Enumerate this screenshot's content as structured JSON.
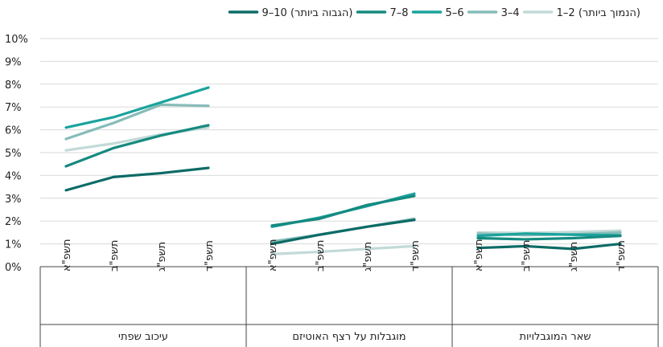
{
  "chart_data": {
    "type": "line",
    "ylim": [
      0,
      10
    ],
    "yticks": [
      "0%",
      "1%",
      "2%",
      "3%",
      "4%",
      "5%",
      "6%",
      "7%",
      "8%",
      "9%",
      "10%"
    ],
    "grid": true,
    "legend_position": "top",
    "x_tick_labels": [
      "תשפ\"א",
      "תשפ\"ב",
      "תשפ\"ג",
      "תשפ\"ד"
    ],
    "groups": [
      "עיכוב שפתי",
      "מוגבלות על רצף האוטיזם",
      "שאר המוגבלויות"
    ],
    "series": [
      {
        "name": "1–2 (הנמוך ביותר)",
        "color": "#c2dad8",
        "values": [
          [
            5.1,
            5.4,
            5.8,
            6.1
          ],
          [
            0.55,
            0.65,
            0.78,
            0.9
          ],
          [
            1.5,
            1.48,
            1.52,
            1.58
          ]
        ]
      },
      {
        "name": "3–4",
        "color": "#86bcb8",
        "values": [
          [
            5.6,
            6.3,
            7.1,
            7.05
          ],
          [
            1.1,
            1.4,
            1.75,
            2.1
          ],
          [
            1.45,
            1.38,
            1.42,
            1.5
          ]
        ]
      },
      {
        "name": "5–6",
        "color": "#1aa39d",
        "values": [
          [
            6.1,
            6.55,
            7.2,
            7.85
          ],
          [
            1.75,
            2.15,
            2.65,
            3.2
          ],
          [
            1.35,
            1.45,
            1.4,
            1.38
          ]
        ]
      },
      {
        "name": "7–8",
        "color": "#158a80",
        "values": [
          [
            4.4,
            5.2,
            5.75,
            6.2
          ],
          [
            1.8,
            2.1,
            2.7,
            3.1
          ],
          [
            1.25,
            1.2,
            1.25,
            1.35
          ]
        ]
      },
      {
        "name": "9–10 (הגבוה ביותר)",
        "color": "#0c6b66",
        "values": [
          [
            3.35,
            3.93,
            4.1,
            4.33
          ],
          [
            1.0,
            1.4,
            1.75,
            2.05
          ],
          [
            0.82,
            0.9,
            0.78,
            1.0
          ]
        ]
      }
    ]
  }
}
